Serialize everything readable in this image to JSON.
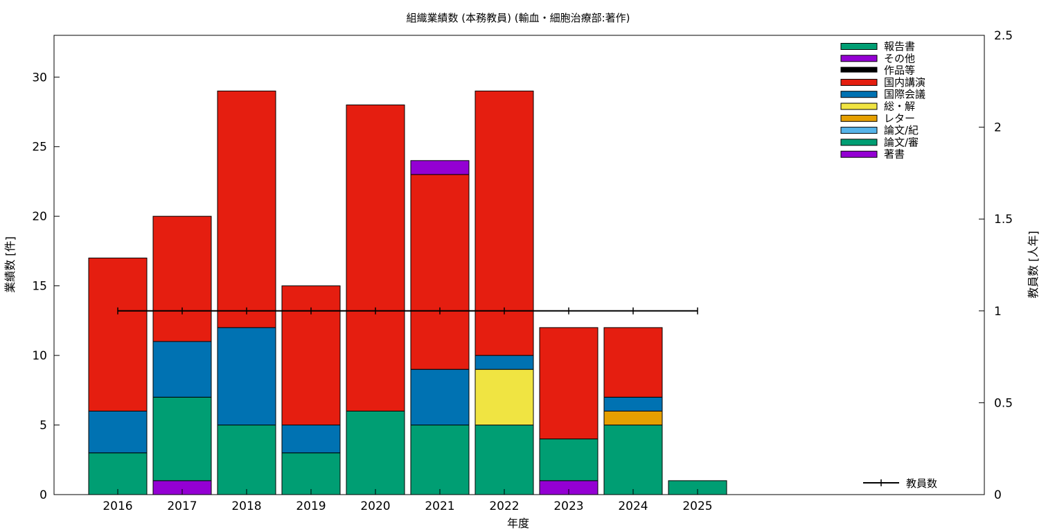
{
  "chart_data": {
    "type": "bar",
    "stacked": true,
    "title": "組織業績数 (本務教員) (輸血・細胞治療部:著作)",
    "xlabel": "年度",
    "ylabel": "業績数 [件]",
    "y2label": "教員数 [人年]",
    "categories": [
      "2016",
      "2017",
      "2018",
      "2019",
      "2020",
      "2021",
      "2022",
      "2023",
      "2024",
      "2025"
    ],
    "ylim": [
      0,
      33
    ],
    "yticks": [
      "0",
      "5",
      "10",
      "15",
      "20",
      "25",
      "30"
    ],
    "y2lim": [
      0,
      2.5
    ],
    "y2ticks": [
      "0",
      "0.5",
      "1",
      "1.5",
      "2",
      "2.5"
    ],
    "grid": false,
    "legend_position": "top-right",
    "series": [
      {
        "name": "著書",
        "color": "#9400d3",
        "values": [
          0,
          1,
          0,
          0,
          0,
          0,
          0,
          1,
          0,
          0
        ]
      },
      {
        "name": "論文/審",
        "color": "#009e73",
        "values": [
          3,
          6,
          5,
          3,
          6,
          5,
          5,
          3,
          5,
          1
        ]
      },
      {
        "name": "論文/紀",
        "color": "#56b4e9",
        "values": [
          0,
          0,
          0,
          0,
          0,
          0,
          0,
          0,
          0,
          0
        ]
      },
      {
        "name": "レター",
        "color": "#e69f00",
        "values": [
          0,
          0,
          0,
          0,
          0,
          0,
          0,
          0,
          1,
          0
        ]
      },
      {
        "name": "総・解",
        "color": "#f0e442",
        "values": [
          0,
          0,
          0,
          0,
          0,
          0,
          4,
          0,
          0,
          0
        ]
      },
      {
        "name": "国際会議",
        "color": "#0072b2",
        "values": [
          3,
          4,
          7,
          2,
          0,
          4,
          1,
          0,
          1,
          0
        ]
      },
      {
        "name": "国内講演",
        "color": "#e51e10",
        "values": [
          11,
          9,
          17,
          10,
          22,
          14,
          19,
          8,
          5,
          0
        ]
      },
      {
        "name": "作品等",
        "color": "#000000",
        "values": [
          0,
          0,
          0,
          0,
          0,
          0,
          0,
          0,
          0,
          0
        ]
      },
      {
        "name": "その他",
        "color": "#9400d3",
        "values": [
          0,
          0,
          0,
          0,
          0,
          1,
          0,
          0,
          0,
          0
        ]
      },
      {
        "name": "報告書",
        "color": "#009e73",
        "values": [
          0,
          0,
          0,
          0,
          0,
          0,
          0,
          0,
          0,
          0
        ]
      }
    ],
    "legend_order": [
      "報告書",
      "その他",
      "作品等",
      "国内講演",
      "国際会議",
      "総・解",
      "レター",
      "論文/紀",
      "論文/審",
      "著書"
    ],
    "line_series": {
      "name": "教員数",
      "axis": "y2",
      "color": "#000000",
      "values": [
        1,
        1,
        1,
        1,
        1,
        1,
        1,
        1,
        1,
        1
      ]
    }
  }
}
